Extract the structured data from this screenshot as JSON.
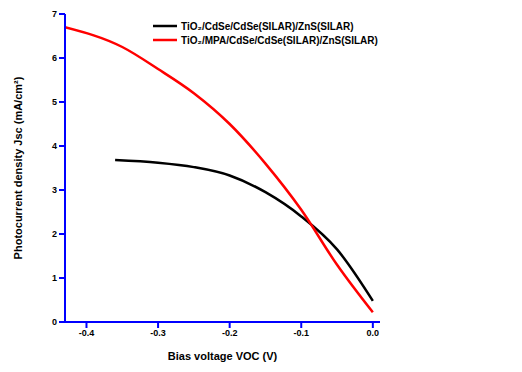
{
  "chart_data": {
    "type": "line",
    "x_label": "Bias voltage VOC (V)",
    "y_label": "Photocurrent density Jsc (mA/cm²)",
    "xlim": [
      -0.43,
      0.01
    ],
    "xticks": [
      -0.4,
      -0.3,
      -0.2,
      -0.1,
      {
        "value": 0,
        "label": "0.0"
      }
    ],
    "ylim": [
      0,
      7
    ],
    "yticks": [
      0,
      1,
      2,
      3,
      4,
      5,
      6,
      7
    ],
    "legend": "top",
    "grid": false,
    "series": [
      {
        "name": "TiO₂/CdSe/CdSe(SILAR)/ZnS(SILAR)",
        "color": "#000000",
        "line_style": "solid",
        "x": [
          -0.36,
          -0.3,
          -0.25,
          -0.2,
          -0.15,
          -0.1,
          -0.05,
          0
        ],
        "values": [
          3.68,
          3.62,
          3.52,
          3.33,
          2.95,
          2.4,
          1.65,
          0.48
        ]
      },
      {
        "name": "TiO₂/MPA/CdSe/CdSe(SILAR)/ZnS(SILAR)",
        "color": "#ff0000",
        "line_style": "solid",
        "x": [
          -0.43,
          -0.35,
          -0.3,
          -0.25,
          -0.2,
          -0.15,
          -0.1,
          -0.05,
          0
        ],
        "values": [
          6.7,
          6.25,
          5.75,
          5.2,
          4.5,
          3.6,
          2.55,
          1.3,
          0.22
        ]
      }
    ]
  }
}
